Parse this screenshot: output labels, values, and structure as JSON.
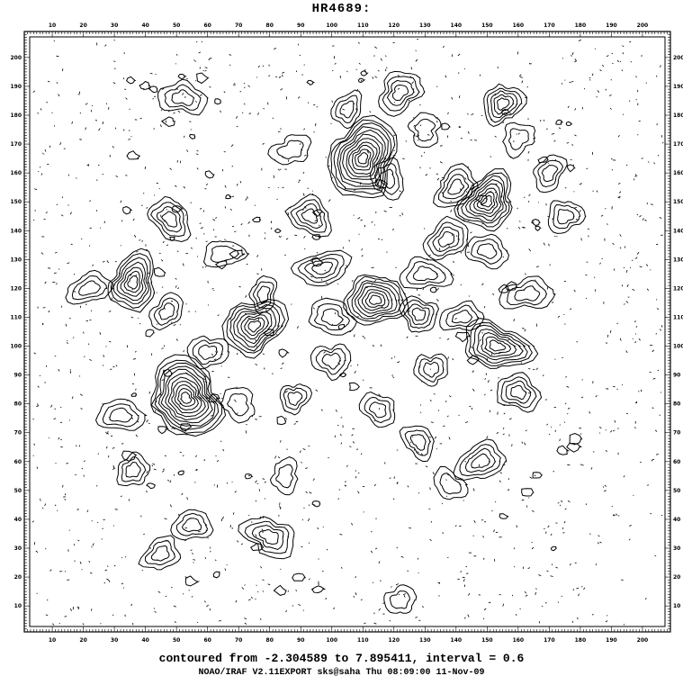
{
  "chart_data": {
    "type": "contour",
    "title": "HR4689:",
    "xlim": [
      1,
      209
    ],
    "ylim": [
      1,
      209
    ],
    "x_ticks": [
      10,
      20,
      30,
      40,
      50,
      60,
      70,
      80,
      90,
      100,
      110,
      120,
      130,
      140,
      150,
      160,
      170,
      180,
      190,
      200
    ],
    "y_ticks": [
      10,
      20,
      30,
      40,
      50,
      60,
      70,
      80,
      90,
      100,
      110,
      120,
      130,
      140,
      150,
      160,
      170,
      180,
      190,
      200
    ],
    "contour_min": -2.304589,
    "contour_max": 7.895411,
    "interval": 0.6,
    "peaks": [
      {
        "x": 110,
        "y": 165,
        "level": 7.5
      },
      {
        "x": 53,
        "y": 82,
        "level": 7.8
      },
      {
        "x": 150,
        "y": 150,
        "level": 5.5
      },
      {
        "x": 114,
        "y": 116,
        "level": 6.0
      },
      {
        "x": 75,
        "y": 107,
        "level": 5.5
      },
      {
        "x": 36,
        "y": 122,
        "level": 5.0
      },
      {
        "x": 153,
        "y": 100,
        "level": 5.0
      },
      {
        "x": 155,
        "y": 184,
        "level": 4.0
      },
      {
        "x": 122,
        "y": 188,
        "level": 3.5
      },
      {
        "x": 52,
        "y": 186,
        "level": 3.0
      },
      {
        "x": 48,
        "y": 144,
        "level": 3.5
      },
      {
        "x": 93,
        "y": 145,
        "level": 3.2
      },
      {
        "x": 105,
        "y": 182,
        "level": 3.0
      },
      {
        "x": 32,
        "y": 76,
        "level": 3.0
      },
      {
        "x": 36,
        "y": 57,
        "level": 3.0
      },
      {
        "x": 148,
        "y": 60,
        "level": 3.5
      },
      {
        "x": 137,
        "y": 137,
        "level": 3.5
      },
      {
        "x": 97,
        "y": 127,
        "level": 3.3
      },
      {
        "x": 128,
        "y": 111,
        "level": 3.5
      },
      {
        "x": 60,
        "y": 98,
        "level": 3.0
      },
      {
        "x": 100,
        "y": 95,
        "level": 3.0
      },
      {
        "x": 132,
        "y": 92,
        "level": 3.0
      },
      {
        "x": 160,
        "y": 84,
        "level": 3.5
      },
      {
        "x": 115,
        "y": 78,
        "level": 3.0
      },
      {
        "x": 128,
        "y": 67,
        "level": 2.8
      },
      {
        "x": 55,
        "y": 38,
        "level": 3.0
      },
      {
        "x": 80,
        "y": 34,
        "level": 3.5
      },
      {
        "x": 45,
        "y": 28,
        "level": 2.6
      },
      {
        "x": 122,
        "y": 12,
        "level": 2.2
      },
      {
        "x": 163,
        "y": 118,
        "level": 3.0
      },
      {
        "x": 118,
        "y": 158,
        "level": 2.8
      },
      {
        "x": 140,
        "y": 155,
        "level": 3.2
      },
      {
        "x": 78,
        "y": 118,
        "level": 2.5
      },
      {
        "x": 47,
        "y": 112,
        "level": 3.0
      },
      {
        "x": 100,
        "y": 110,
        "level": 3.0
      },
      {
        "x": 130,
        "y": 125,
        "level": 3.0
      },
      {
        "x": 88,
        "y": 82,
        "level": 2.6
      },
      {
        "x": 70,
        "y": 80,
        "level": 2.3
      },
      {
        "x": 22,
        "y": 120,
        "level": 2.5
      },
      {
        "x": 175,
        "y": 145,
        "level": 3.0
      },
      {
        "x": 170,
        "y": 160,
        "level": 2.5
      },
      {
        "x": 85,
        "y": 55,
        "level": 2.3
      },
      {
        "x": 138,
        "y": 52,
        "level": 2.2
      },
      {
        "x": 65,
        "y": 132,
        "level": 2.4
      },
      {
        "x": 150,
        "y": 133,
        "level": 2.8
      },
      {
        "x": 142,
        "y": 110,
        "level": 2.5
      },
      {
        "x": 160,
        "y": 172,
        "level": 2.3
      },
      {
        "x": 130,
        "y": 175,
        "level": 2.2
      },
      {
        "x": 87,
        "y": 168,
        "level": 2.2
      }
    ]
  },
  "title": "HR4689:",
  "caption": {
    "line1": "contoured from -2.304589 to 7.895411, interval = 0.6",
    "line2": "NOAO/IRAF V2.11EXPORT sks@saha Thu 08:09:00 11-Nov-09"
  }
}
